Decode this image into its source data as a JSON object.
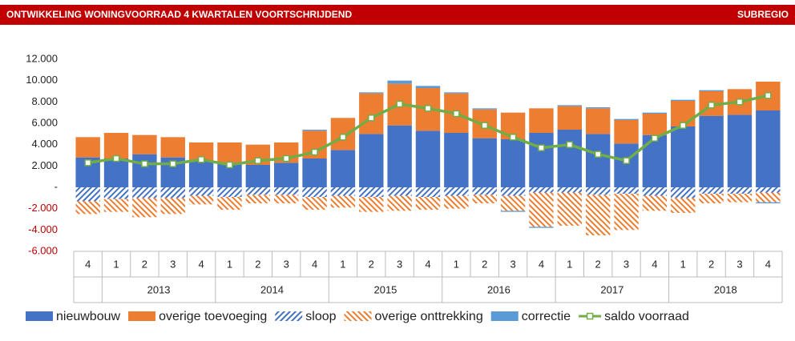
{
  "chart_data": {
    "type": "bar",
    "title": "ONTWIKKELING WONINGVOORRAAD 4 KWARTALEN VOORTSCHRIJDEND",
    "subtitle": "SUBREGIO",
    "categories": [
      "4",
      "1",
      "2",
      "3",
      "4",
      "1",
      "2",
      "3",
      "4",
      "1",
      "2",
      "3",
      "4",
      "1",
      "2",
      "3",
      "4",
      "1",
      "2",
      "3",
      "4",
      "1",
      "2",
      "3",
      "4"
    ],
    "category_groups": [
      null,
      "2013",
      "2013",
      "2013",
      "2013",
      "2014",
      "2014",
      "2014",
      "2014",
      "2015",
      "2015",
      "2015",
      "2015",
      "2016",
      "2016",
      "2016",
      "2016",
      "2017",
      "2017",
      "2017",
      "2017",
      "2018",
      "2018",
      "2018",
      "2018"
    ],
    "series": [
      {
        "name": "nieuwbouw",
        "type": "bar",
        "color": "#4472c4",
        "values": [
          2800,
          2700,
          3100,
          2800,
          2400,
          2200,
          2100,
          2300,
          2700,
          3500,
          5000,
          5800,
          5300,
          5100,
          4600,
          4500,
          5100,
          5400,
          5000,
          4100,
          4900,
          5700,
          6700,
          6800,
          7200
        ]
      },
      {
        "name": "overige toevoeging",
        "type": "bar",
        "color": "#ed7d31",
        "values": [
          1900,
          2400,
          1800,
          1900,
          1800,
          2000,
          1900,
          1900,
          2600,
          3000,
          3800,
          3900,
          4000,
          3700,
          2700,
          2500,
          2300,
          2200,
          2400,
          2200,
          2000,
          2400,
          2300,
          2400,
          2700
        ]
      },
      {
        "name": "sloop",
        "type": "bar",
        "color": "#4472c4",
        "hatched": true,
        "values": [
          -1300,
          -1100,
          -1000,
          -1000,
          -800,
          -900,
          -700,
          -700,
          -900,
          -800,
          -900,
          -800,
          -900,
          -800,
          -700,
          -800,
          -500,
          -500,
          -700,
          -600,
          -800,
          -1000,
          -600,
          -600,
          -500
        ]
      },
      {
        "name": "overige onttrekking",
        "type": "bar",
        "color": "#ed7d31",
        "hatched": true,
        "values": [
          -1200,
          -1200,
          -1800,
          -1500,
          -800,
          -1200,
          -800,
          -800,
          -1200,
          -1100,
          -1400,
          -1400,
          -1200,
          -1200,
          -800,
          -1400,
          -3200,
          -3100,
          -3800,
          -3400,
          -1400,
          -1400,
          -900,
          -800,
          -900
        ]
      },
      {
        "name": "correctie",
        "type": "bar",
        "color": "#5b9bd5",
        "values": [
          0,
          0,
          0,
          0,
          0,
          0,
          0,
          0,
          100,
          0,
          100,
          300,
          200,
          100,
          100,
          -100,
          -100,
          100,
          100,
          100,
          100,
          100,
          100,
          0,
          -100
        ]
      },
      {
        "name": "saldo voorraad",
        "type": "line",
        "color": "#70ad47",
        "values": [
          2300,
          2700,
          2200,
          2200,
          2600,
          2100,
          2500,
          2700,
          3300,
          4700,
          6500,
          7800,
          7400,
          6900,
          5800,
          4700,
          3700,
          4000,
          3100,
          2500,
          4600,
          5800,
          7700,
          8000,
          8600
        ]
      }
    ],
    "ylim": [
      -6000,
      12000
    ],
    "yticks": [
      {
        "value": -6000,
        "label": "-6.000"
      },
      {
        "value": -4000,
        "label": "-4.000"
      },
      {
        "value": -2000,
        "label": "-2.000"
      },
      {
        "value": 0,
        "label": "-"
      },
      {
        "value": 2000,
        "label": "2.000"
      },
      {
        "value": 4000,
        "label": "4.000"
      },
      {
        "value": 6000,
        "label": "6.000"
      },
      {
        "value": 8000,
        "label": "8.000"
      },
      {
        "value": 10000,
        "label": "10.000"
      },
      {
        "value": 12000,
        "label": "12.000"
      }
    ],
    "grid": false,
    "legend": "bottom"
  }
}
